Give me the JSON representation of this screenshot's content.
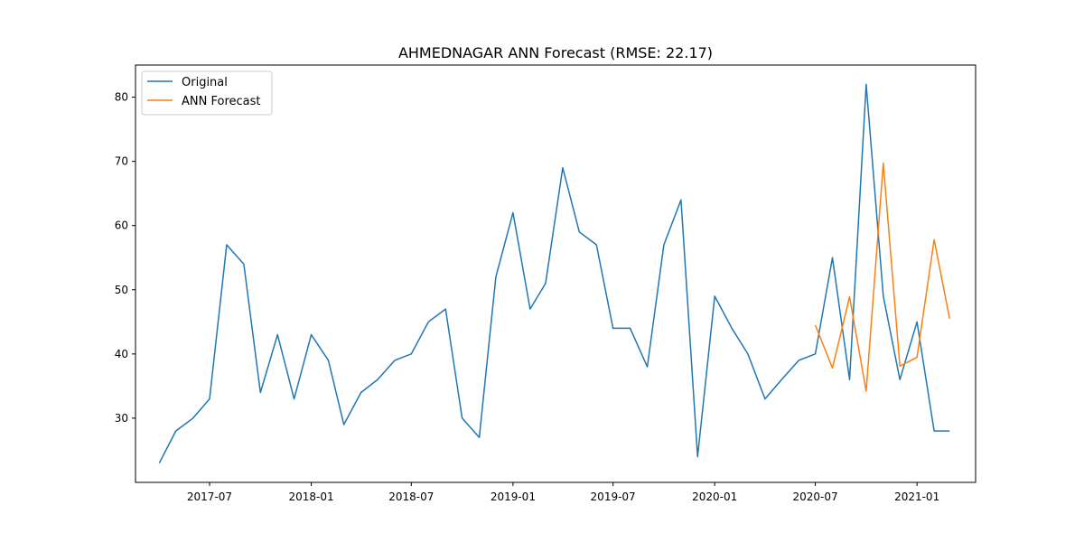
{
  "chart_data": {
    "type": "line",
    "title": "AHMEDNAGAR ANN Forecast (RMSE: 22.17)",
    "xlabel": "",
    "ylabel": "",
    "x_axis": "date",
    "xlim": [
      "2017-02-17",
      "2021-04-17"
    ],
    "ylim": [
      20,
      85
    ],
    "grid": false,
    "legend_position": "top-left",
    "x_ticks": [
      "2017-07-01",
      "2018-01-01",
      "2018-07-01",
      "2019-01-01",
      "2019-07-01",
      "2020-01-01",
      "2020-07-01",
      "2021-01-01"
    ],
    "x_tick_labels": [
      "2017-07",
      "2018-01",
      "2018-07",
      "2019-01",
      "2019-07",
      "2020-01",
      "2020-07",
      "2021-01"
    ],
    "y_ticks": [
      30,
      40,
      50,
      60,
      70,
      80
    ],
    "y_tick_labels": [
      "30",
      "40",
      "50",
      "60",
      "70",
      "80"
    ],
    "series": [
      {
        "name": "Original",
        "color": "#1f77b4",
        "x": [
          "2017-04-01",
          "2017-05-01",
          "2017-06-01",
          "2017-07-01",
          "2017-08-01",
          "2017-09-01",
          "2017-10-01",
          "2017-11-01",
          "2017-12-01",
          "2018-01-01",
          "2018-02-01",
          "2018-03-01",
          "2018-04-01",
          "2018-05-01",
          "2018-06-01",
          "2018-07-01",
          "2018-08-01",
          "2018-09-01",
          "2018-10-01",
          "2018-11-01",
          "2018-12-01",
          "2019-01-01",
          "2019-02-01",
          "2019-03-01",
          "2019-04-01",
          "2019-05-01",
          "2019-06-01",
          "2019-07-01",
          "2019-08-01",
          "2019-09-01",
          "2019-10-01",
          "2019-11-01",
          "2019-12-01",
          "2020-01-01",
          "2020-02-01",
          "2020-03-01",
          "2020-04-01",
          "2020-05-01",
          "2020-06-01",
          "2020-07-01",
          "2020-08-01",
          "2020-09-01",
          "2020-10-01",
          "2020-11-01",
          "2020-12-01",
          "2021-01-01",
          "2021-02-01",
          "2021-03-01"
        ],
        "y": [
          23,
          28,
          30,
          33,
          57,
          54,
          34,
          43,
          33,
          43,
          39,
          29,
          34,
          36,
          39,
          40,
          45,
          47,
          30,
          27,
          52,
          62,
          47,
          51,
          69,
          59,
          57,
          44,
          44,
          38,
          57,
          64,
          24,
          49,
          44,
          40,
          33,
          36,
          39,
          40,
          55,
          36,
          82,
          49,
          36,
          45,
          28,
          28
        ]
      },
      {
        "name": "ANN Forecast",
        "color": "#ff7f0e",
        "x": [
          "2020-07-01",
          "2020-08-01",
          "2020-09-01",
          "2020-10-01",
          "2020-11-01",
          "2020-12-01",
          "2021-01-01",
          "2021-02-01",
          "2021-03-01"
        ],
        "y": [
          44.5,
          37.8,
          48.9,
          34.2,
          69.7,
          38.1,
          39.5,
          57.8,
          45.5
        ]
      }
    ]
  }
}
